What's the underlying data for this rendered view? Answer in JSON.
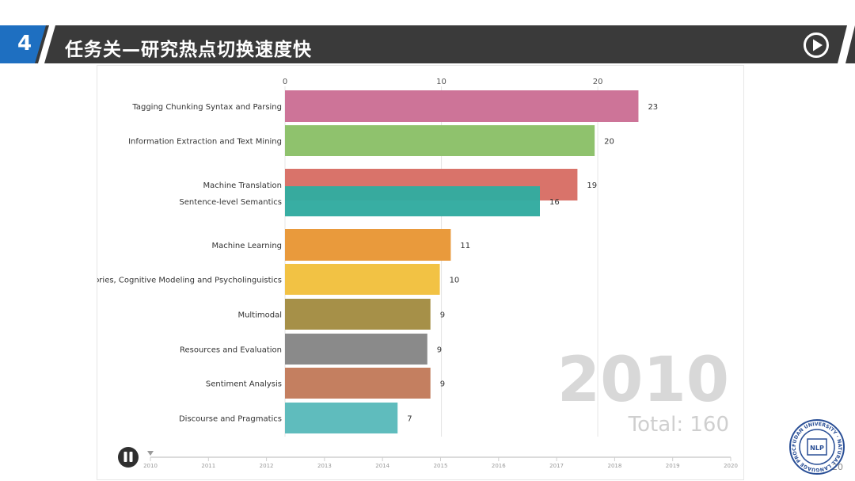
{
  "header": {
    "section_number": "4",
    "title": "任务关—研究热点切换速度快"
  },
  "page_number": "20",
  "logo": {
    "text": "FUDAN UNIVERSITY · NATURAL LANGUAGE PROCESSING",
    "center": "NLP"
  },
  "colors": {
    "header_bg": "#3a3a3a",
    "accent_blue": "#1e6fc1"
  },
  "chart_data": {
    "type": "bar",
    "orientation": "horizontal",
    "categories": [
      "Tagging Chunking Syntax and Parsing",
      "Information Extraction and Text Mining",
      "Machine Translation",
      "Sentence-level Semantics",
      "Machine Learning",
      "ories, Cognitive Modeling and Psycholinguistics",
      "Multimodal",
      "Resources and Evaluation",
      "Sentiment Analysis",
      "Discourse and Pragmatics"
    ],
    "values": [
      23,
      20,
      19,
      16,
      11,
      10,
      9,
      9,
      9,
      7
    ],
    "bar_length_values": [
      22.6,
      19.8,
      18.7,
      16.3,
      10.6,
      9.9,
      9.3,
      9.1,
      9.3,
      7.2
    ],
    "colors": [
      "#cd7498",
      "#8fc26d",
      "#d9736a",
      "#32aba0",
      "#e99a3c",
      "#f2c244",
      "#a69048",
      "#8a8a8a",
      "#c47f60",
      "#5fbcbd"
    ],
    "x_ticks": [
      "0",
      "10",
      "20"
    ],
    "xlim": [
      0,
      28.5
    ],
    "year_label": "2010",
    "total_label": "Total: 160",
    "timeline_ticks": [
      "2010",
      "2011",
      "2012",
      "2013",
      "2014",
      "2015",
      "2016",
      "2017",
      "2018",
      "2019",
      "2020"
    ],
    "timeline_current": "2010"
  }
}
